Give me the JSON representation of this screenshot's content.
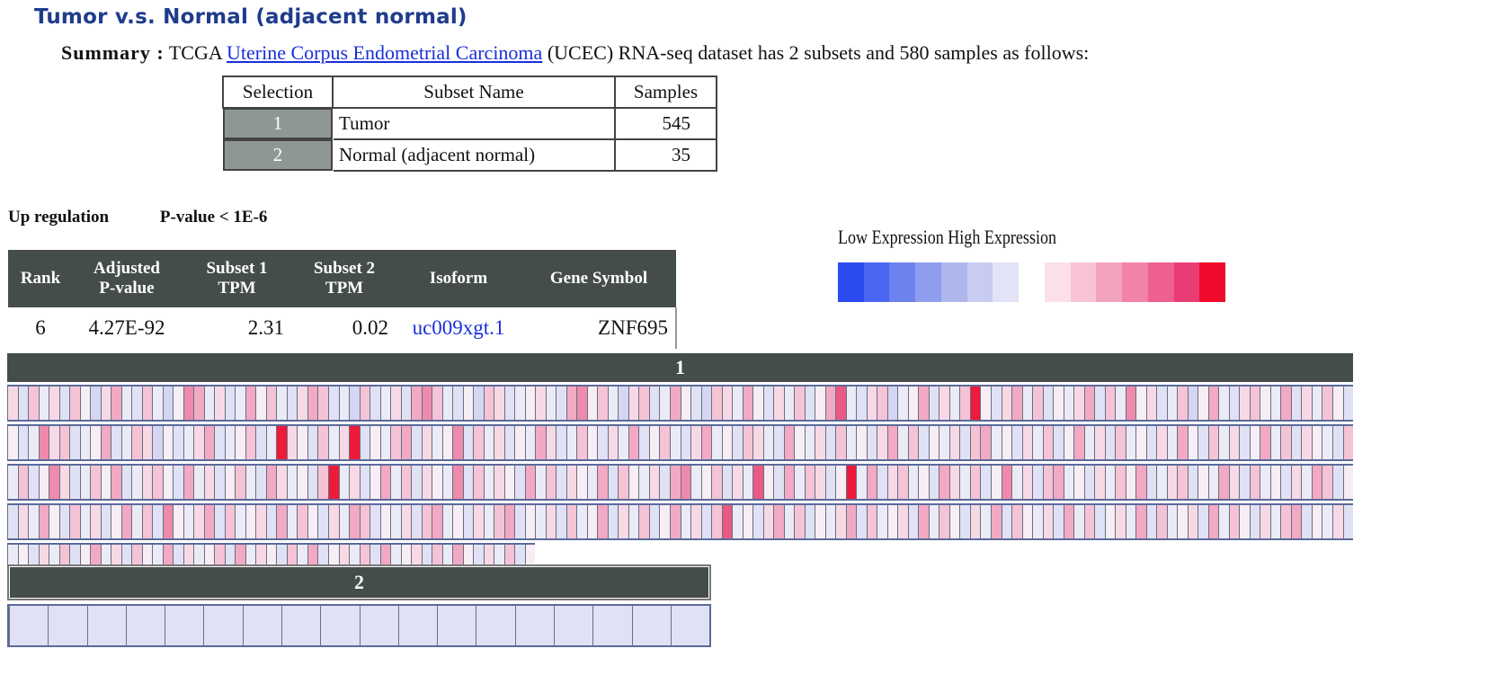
{
  "title": "Tumor v.s. Normal (adjacent normal)",
  "summary": {
    "label": "Summary :",
    "prefix": "TCGA",
    "link_text": "Uterine Corpus Endometrial Carcinoma",
    "suffix": "(UCEC) RNA-seq dataset has 2 subsets and 580 samples as follows:"
  },
  "subset_table": {
    "headers": [
      "Selection",
      "Subset Name",
      "Samples"
    ],
    "rows": [
      {
        "selection": "1",
        "name": "Tumor",
        "samples": "545"
      },
      {
        "selection": "2",
        "name": "Normal (adjacent normal)",
        "samples": "35"
      }
    ]
  },
  "regulation": {
    "label": "Up regulation",
    "pvalue": "P-value < 1E-6"
  },
  "legend": {
    "title": "Low Expression High Expression",
    "colors": [
      "#2b4bf0",
      "#4a66f2",
      "#6c82ef",
      "#8e9ded",
      "#aeb6ec",
      "#c8ccf0",
      "#e2e3f6",
      "#ffffff",
      "#fbe0ea",
      "#f8c3d5",
      "#f4a3bd",
      "#f183a6",
      "#ee608e",
      "#ea3c74",
      "#ef0a2c"
    ]
  },
  "result_table": {
    "headers": {
      "rank": "Rank",
      "adj_1": "Adjusted",
      "adj_2": "P-value",
      "s1_1": "Subset 1",
      "s1_2": "TPM",
      "s2_1": "Subset 2",
      "s2_2": "TPM",
      "isoform": "Isoform",
      "gene": "Gene Symbol"
    },
    "row": {
      "rank": "6",
      "adjusted_pvalue": "4.27E-92",
      "subset1_tpm": "2.31",
      "subset2_tpm": "0.02",
      "isoform": "uc009xgt.1",
      "gene_symbol": "ZNF695"
    }
  },
  "heatmap": {
    "subset1_label": "1",
    "subset2_label": "2",
    "subset1_samples": 545,
    "subset2_samples": 35,
    "palette": [
      "#d4d6f2",
      "#e0e1f5",
      "#ebebf8",
      "#f6eef4",
      "#f7d9e6",
      "#f5c3d6",
      "#f2a9c3",
      "#ee8aab",
      "#e85a83",
      "#ee1a3a"
    ],
    "subset1_levels": [
      [
        4,
        1,
        5,
        2,
        4,
        1,
        5,
        3,
        0,
        4,
        6,
        2,
        1,
        5,
        2,
        0,
        3,
        7,
        6,
        2,
        4,
        1,
        2,
        6,
        3,
        5,
        2,
        1,
        4,
        6,
        5,
        1,
        2,
        0,
        5,
        1,
        2,
        4,
        1,
        6,
        7,
        5,
        2,
        1,
        3,
        0,
        5,
        4,
        1,
        2,
        3,
        4,
        2,
        1,
        6,
        7,
        3,
        5,
        2,
        0,
        4,
        5,
        1,
        2,
        6,
        3,
        1,
        0,
        5,
        4,
        2,
        6,
        3,
        1,
        4,
        2,
        5,
        1,
        3,
        6,
        8,
        2,
        1,
        4,
        5,
        0,
        2,
        3,
        6,
        1,
        4,
        2,
        5,
        9,
        3,
        1,
        4,
        6,
        2,
        5,
        1,
        3,
        2,
        4,
        6,
        1,
        5,
        2,
        7,
        3,
        4,
        1,
        2,
        5,
        0,
        3,
        6,
        2,
        1,
        4,
        5,
        3,
        2,
        6,
        1,
        4,
        2,
        5,
        3,
        1
      ],
      [
        3,
        1,
        2,
        7,
        4,
        5,
        1,
        2,
        3,
        6,
        1,
        2,
        5,
        4,
        0,
        3,
        1,
        2,
        4,
        6,
        1,
        2,
        3,
        5,
        1,
        2,
        9,
        4,
        3,
        1,
        5,
        2,
        4,
        9,
        1,
        3,
        2,
        5,
        6,
        1,
        4,
        2,
        3,
        7,
        1,
        5,
        2,
        4,
        1,
        3,
        2,
        6,
        4,
        1,
        2,
        5,
        3,
        1,
        4,
        2,
        6,
        1,
        3,
        5,
        2,
        1,
        4,
        6,
        2,
        3,
        1,
        5,
        4,
        2,
        1,
        6,
        3,
        2,
        4,
        1,
        5,
        2,
        3,
        1,
        4,
        6,
        2,
        5,
        1,
        3,
        2,
        4,
        1,
        5,
        6,
        2,
        3,
        1,
        4,
        2,
        5,
        1,
        3,
        6,
        2,
        4,
        1,
        5,
        2,
        3,
        1,
        4,
        2,
        6,
        3,
        1,
        5,
        2,
        4,
        1,
        3,
        6,
        2,
        5,
        1,
        4,
        3,
        2,
        1,
        5
      ],
      [
        2,
        5,
        1,
        3,
        7,
        4,
        1,
        2,
        5,
        3,
        6,
        1,
        2,
        4,
        5,
        3,
        1,
        6,
        2,
        4,
        1,
        3,
        5,
        2,
        1,
        6,
        4,
        2,
        3,
        1,
        5,
        9,
        2,
        4,
        1,
        3,
        6,
        2,
        5,
        1,
        4,
        3,
        2,
        7,
        1,
        5,
        2,
        4,
        3,
        1,
        6,
        2,
        5,
        1,
        4,
        3,
        2,
        6,
        1,
        5,
        3,
        2,
        4,
        1,
        6,
        7,
        2,
        3,
        5,
        1,
        4,
        2,
        8,
        3,
        1,
        6,
        2,
        5,
        4,
        1,
        3,
        9,
        2,
        6,
        1,
        4,
        5,
        2,
        3,
        1,
        6,
        4,
        2,
        5,
        1,
        3,
        7,
        2,
        4,
        1,
        5,
        6,
        2,
        3,
        1,
        4,
        2,
        5,
        3,
        6,
        1,
        2,
        4,
        5,
        1,
        3,
        2,
        6,
        4,
        1,
        5,
        2,
        3,
        1,
        4,
        2,
        6,
        5,
        1,
        3
      ],
      [
        1,
        4,
        2,
        6,
        3,
        1,
        5,
        2,
        4,
        1,
        3,
        6,
        2,
        5,
        1,
        7,
        3,
        2,
        4,
        6,
        1,
        5,
        2,
        3,
        4,
        1,
        6,
        2,
        5,
        3,
        1,
        4,
        2,
        6,
        5,
        1,
        3,
        2,
        4,
        1,
        5,
        6,
        2,
        3,
        1,
        4,
        2,
        5,
        6,
        1,
        3,
        2,
        4,
        1,
        5,
        2,
        3,
        6,
        1,
        4,
        2,
        5,
        1,
        3,
        6,
        2,
        4,
        1,
        5,
        8,
        2,
        3,
        1,
        4,
        6,
        2,
        5,
        1,
        3,
        2,
        4,
        6,
        1,
        5,
        2,
        3,
        4,
        1,
        6,
        2,
        5,
        3,
        1,
        4,
        2,
        6,
        1,
        5,
        3,
        2,
        4,
        1,
        6,
        2,
        5,
        1,
        3,
        4,
        2,
        6,
        1,
        5,
        2,
        3,
        4,
        1,
        6,
        2,
        5,
        3,
        1,
        4,
        2,
        5,
        6,
        1,
        3,
        2,
        4,
        1
      ],
      [
        2,
        3,
        1,
        4,
        2,
        5,
        1,
        3,
        6,
        2,
        4,
        1,
        5,
        3,
        2,
        6,
        1,
        4,
        2,
        3,
        5,
        1,
        6,
        2,
        4,
        3,
        1,
        5,
        2,
        6,
        1,
        3,
        4,
        2,
        5,
        1,
        6,
        2,
        3,
        4,
        1,
        5,
        2,
        6,
        3,
        1,
        4,
        2,
        5,
        1,
        3
      ]
    ],
    "subset2_levels": [
      1,
      1,
      1,
      1,
      1,
      1,
      1,
      1,
      1,
      1,
      1,
      1,
      1,
      1,
      1,
      1,
      1,
      1
    ]
  }
}
